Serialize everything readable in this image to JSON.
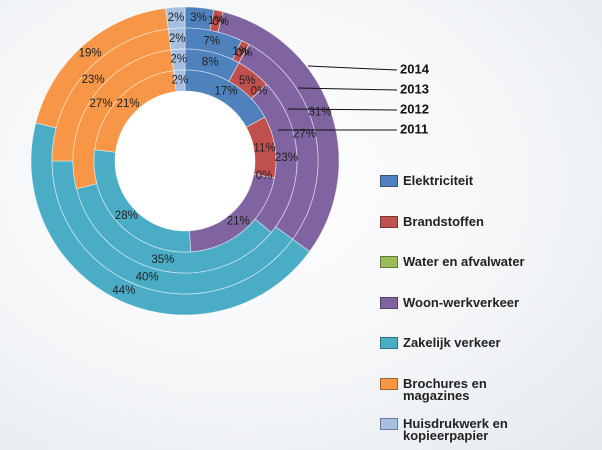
{
  "chart_data": {
    "type": "multi-donut",
    "categories": [
      "Elektriciteit",
      "Brandstoffen",
      "Water en afvalwater",
      "Woon-werkverkeer",
      "Zakelijk verkeer",
      "Brochures en magazines",
      "Huisdrukwerk en kopieerpapier"
    ],
    "colors": [
      "#4f81bd",
      "#c0504d",
      "#9bbb59",
      "#8064a2",
      "#4bacc6",
      "#f79646",
      "#a7c0e2"
    ],
    "series": [
      {
        "name": "2014",
        "values": [
          3,
          1,
          0,
          31,
          44,
          19,
          2
        ],
        "value_labels": [
          "3%",
          "1%",
          "0%",
          "31%",
          "44%",
          "19%",
          "2%"
        ]
      },
      {
        "name": "2013",
        "values": [
          7,
          1,
          0,
          27,
          40,
          23,
          2
        ],
        "value_labels": [
          "7%",
          "1%",
          "0%",
          "27%",
          "40%",
          "23%",
          "2%"
        ]
      },
      {
        "name": "2012",
        "values": [
          8,
          5,
          0,
          23,
          35,
          27,
          2
        ],
        "value_labels": [
          "8%",
          "5%",
          "0%",
          "23%",
          "35%",
          "27%",
          "2%"
        ]
      },
      {
        "name": "2011",
        "values": [
          17,
          11,
          0,
          21,
          28,
          21,
          2
        ],
        "value_labels": [
          "17%",
          "11%",
          "0%",
          "21%",
          "28%",
          "21%",
          "2%"
        ]
      }
    ]
  }
}
